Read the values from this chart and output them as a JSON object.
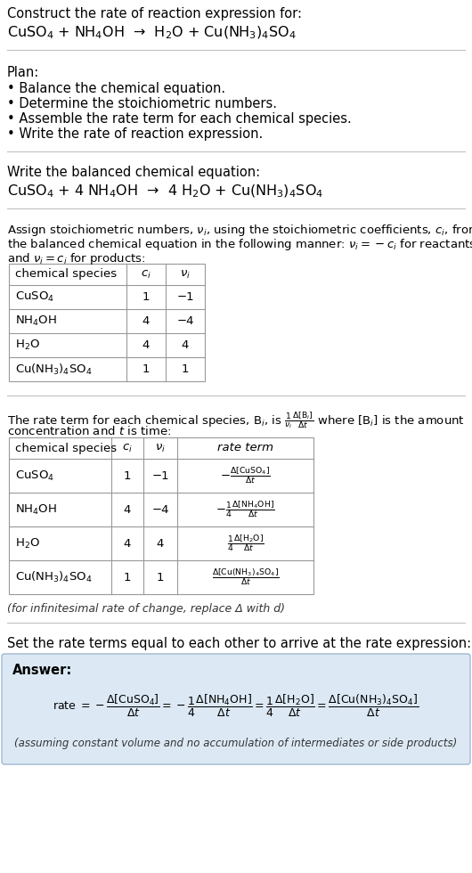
{
  "title_line1": "Construct the rate of reaction expression for:",
  "title_line2": "CuSO$_4$ + NH$_4$OH  →  H$_2$O + Cu(NH$_3$)$_4$SO$_4$",
  "plan_header": "Plan:",
  "plan_items": [
    "• Balance the chemical equation.",
    "• Determine the stoichiometric numbers.",
    "• Assemble the rate term for each chemical species.",
    "• Write the rate of reaction expression."
  ],
  "balanced_header": "Write the balanced chemical equation:",
  "balanced_eq": "CuSO$_4$ + 4 NH$_4$OH  →  4 H$_2$O + Cu(NH$_3$)$_4$SO$_4$",
  "stoich_intro1": "Assign stoichiometric numbers, $\\nu_i$, using the stoichiometric coefficients, $c_i$, from",
  "stoich_intro2": "the balanced chemical equation in the following manner: $\\nu_i = -c_i$ for reactants",
  "stoich_intro3": "and $\\nu_i = c_i$ for products:",
  "table1_headers": [
    "chemical species",
    "$c_i$",
    "$\\nu_i$"
  ],
  "table1_rows": [
    [
      "CuSO$_4$",
      "1",
      "−1"
    ],
    [
      "NH$_4$OH",
      "4",
      "−4"
    ],
    [
      "H$_2$O",
      "4",
      "4"
    ],
    [
      "Cu(NH$_3$)$_4$SO$_4$",
      "1",
      "1"
    ]
  ],
  "rate_intro1": "The rate term for each chemical species, B$_i$, is $\\frac{1}{\\nu_i}\\frac{\\Delta[\\mathrm{B}_i]}{\\Delta t}$ where [B$_i$] is the amount",
  "rate_intro2": "concentration and $t$ is time:",
  "table2_headers": [
    "chemical species",
    "$c_i$",
    "$\\nu_i$",
    "rate term"
  ],
  "table2_rows": [
    [
      "CuSO$_4$",
      "1",
      "−1",
      "$-\\frac{\\Delta[\\mathrm{CuSO_4}]}{\\Delta t}$"
    ],
    [
      "NH$_4$OH",
      "4",
      "−4",
      "$-\\frac{1}{4}\\frac{\\Delta[\\mathrm{NH_4OH}]}{\\Delta t}$"
    ],
    [
      "H$_2$O",
      "4",
      "4",
      "$\\frac{1}{4}\\frac{\\Delta[\\mathrm{H_2O}]}{\\Delta t}$"
    ],
    [
      "Cu(NH$_3$)$_4$SO$_4$",
      "1",
      "1",
      "$\\frac{\\Delta[\\mathrm{Cu(NH_3)_4SO_4}]}{\\Delta t}$"
    ]
  ],
  "infinitesimal_note": "(for infinitesimal rate of change, replace Δ with d)",
  "set_equal_intro": "Set the rate terms equal to each other to arrive at the rate expression:",
  "answer_label": "Answer:",
  "answer_bg": "#dce9f5",
  "answer_border": "#a0b8d0",
  "answer_note": "(assuming constant volume and no accumulation of intermediates or side products)",
  "bg_color": "#ffffff",
  "text_color": "#000000"
}
